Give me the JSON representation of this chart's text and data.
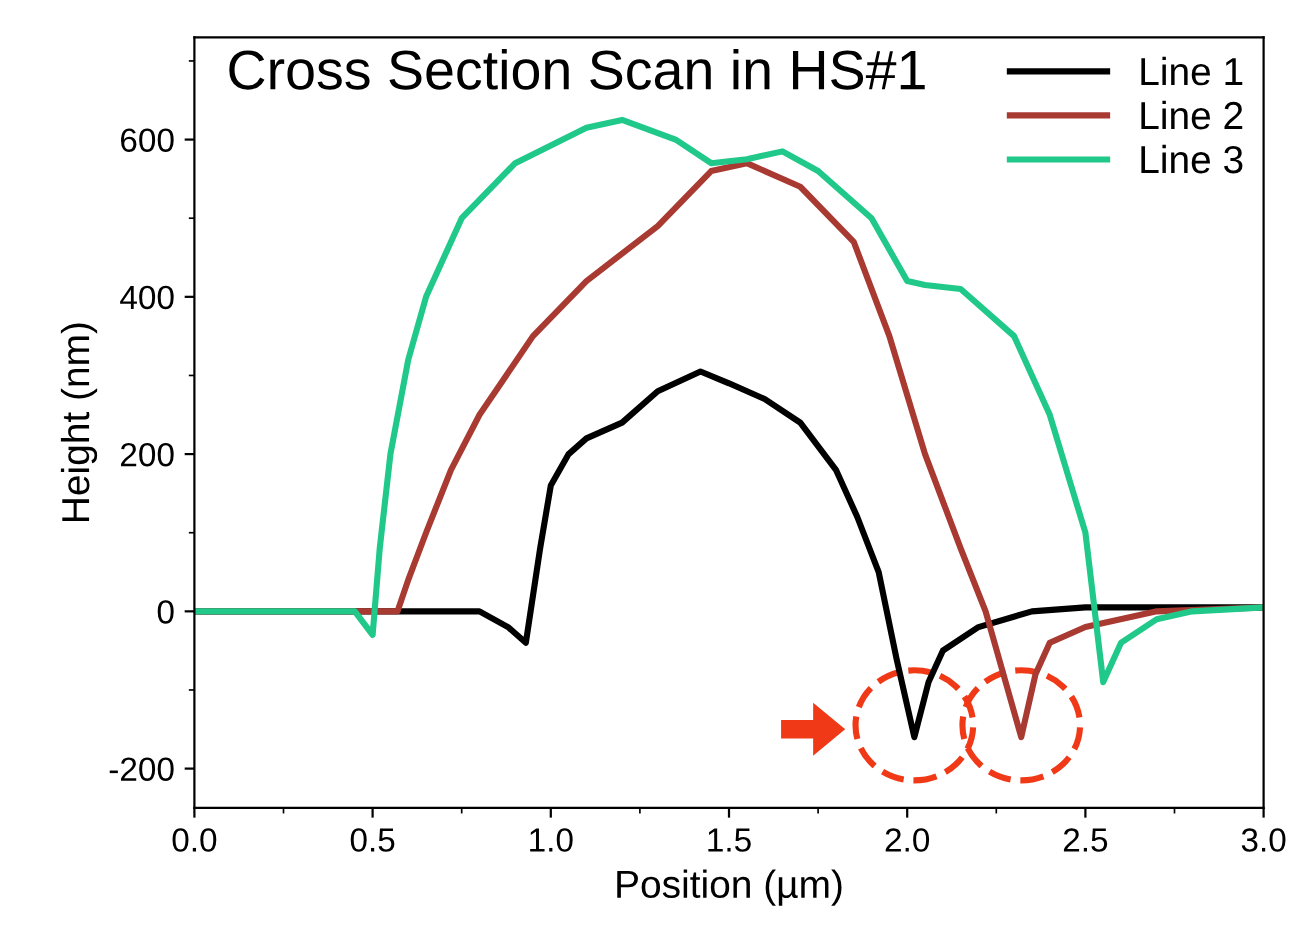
{
  "chart_data": {
    "type": "line",
    "title": "Cross Section Scan in HS#1",
    "xlabel": "Position (µm)",
    "ylabel": "Height (nm)",
    "xlim": [
      0,
      3
    ],
    "xticks": [
      {
        "value": 0,
        "label": "0.0"
      },
      {
        "value": 0.5,
        "label": "0.5"
      },
      {
        "value": 1,
        "label": "1.0"
      },
      {
        "value": 1.5,
        "label": "1.5"
      },
      {
        "value": 2,
        "label": "2.0"
      },
      {
        "value": 2.5,
        "label": "2.5"
      },
      {
        "value": 3,
        "label": "3.0"
      }
    ],
    "ylim": [
      -250,
      730
    ],
    "yticks": [
      -200,
      0,
      200,
      400,
      600
    ],
    "grid": false,
    "legend": "top right",
    "marker": "none",
    "line_style": "solid",
    "series": [
      {
        "name": "Line 1",
        "color": "#000000",
        "x": [
          0,
          0.2,
          0.4,
          0.6,
          0.8,
          0.88,
          0.93,
          0.97,
          1.0,
          1.05,
          1.1,
          1.2,
          1.3,
          1.42,
          1.5,
          1.6,
          1.7,
          1.8,
          1.86,
          1.92,
          1.97,
          2.02,
          2.06,
          2.1,
          2.2,
          2.35,
          2.5,
          2.75,
          3.0
        ],
        "values": [
          0,
          0,
          0,
          0,
          0,
          -20,
          -40,
          80,
          160,
          200,
          220,
          240,
          280,
          305,
          290,
          270,
          240,
          180,
          120,
          50,
          -60,
          -160,
          -90,
          -50,
          -20,
          0,
          5,
          5,
          5
        ]
      },
      {
        "name": "Line 2",
        "color": "#a83a32",
        "x": [
          0,
          0.3,
          0.5,
          0.57,
          0.6,
          0.65,
          0.72,
          0.8,
          0.95,
          1.1,
          1.3,
          1.45,
          1.55,
          1.7,
          1.85,
          1.95,
          2.05,
          2.15,
          2.22,
          2.27,
          2.32,
          2.36,
          2.4,
          2.5,
          2.7,
          3.0
        ],
        "values": [
          0,
          0,
          0,
          0,
          40,
          100,
          180,
          250,
          350,
          420,
          490,
          560,
          570,
          540,
          470,
          350,
          200,
          80,
          0,
          -80,
          -160,
          -80,
          -40,
          -20,
          0,
          5
        ]
      },
      {
        "name": "Line 3",
        "color": "#20c88a",
        "x": [
          0,
          0.2,
          0.45,
          0.5,
          0.52,
          0.55,
          0.6,
          0.65,
          0.75,
          0.9,
          1.1,
          1.2,
          1.35,
          1.45,
          1.55,
          1.65,
          1.75,
          1.9,
          2.0,
          2.05,
          2.15,
          2.3,
          2.4,
          2.5,
          2.55,
          2.6,
          2.7,
          2.8,
          3.0
        ],
        "values": [
          0,
          0,
          0,
          -30,
          80,
          200,
          320,
          400,
          500,
          570,
          615,
          625,
          600,
          570,
          575,
          585,
          560,
          500,
          420,
          415,
          410,
          350,
          250,
          100,
          -90,
          -40,
          -10,
          0,
          5
        ]
      }
    ]
  }
}
